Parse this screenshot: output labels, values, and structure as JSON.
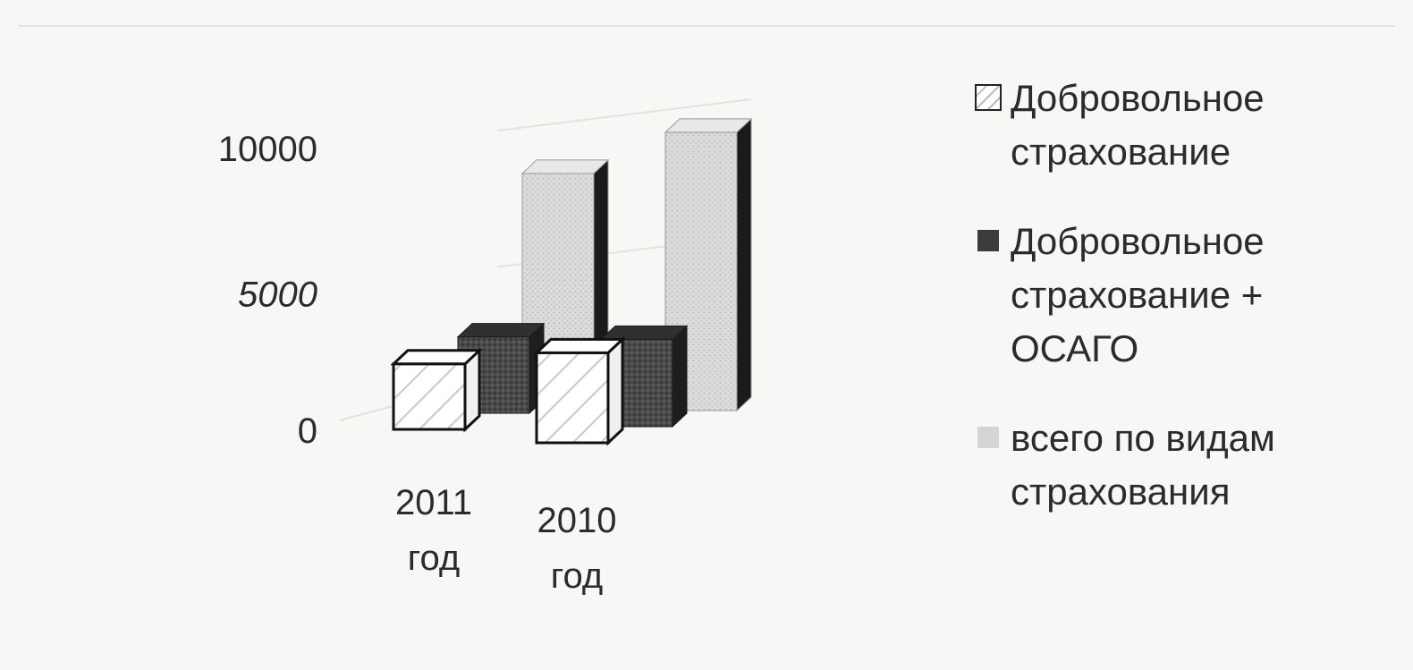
{
  "chart_data": {
    "type": "bar",
    "subtype": "3d-clustered-column",
    "categories": [
      "2011 год",
      "2010 год"
    ],
    "category_lines": [
      [
        "2011",
        "год"
      ],
      [
        "2010",
        "год"
      ]
    ],
    "series": [
      {
        "name": "Добровольное страхование",
        "values": [
          1600,
          2200
        ],
        "color": "#ffffff"
      },
      {
        "name": "Добровольное страхование + ОСАГО",
        "values": [
          2800,
          3200
        ],
        "color": "#3c3c3c"
      },
      {
        "name": "всего по видам страхования",
        "values": [
          8200,
          10200
        ],
        "color": "#d4d4d4"
      }
    ],
    "y_ticks": [
      "10000",
      "5000",
      "0"
    ],
    "ylim": [
      0,
      10000
    ],
    "grid": true,
    "legend_position": "right"
  }
}
